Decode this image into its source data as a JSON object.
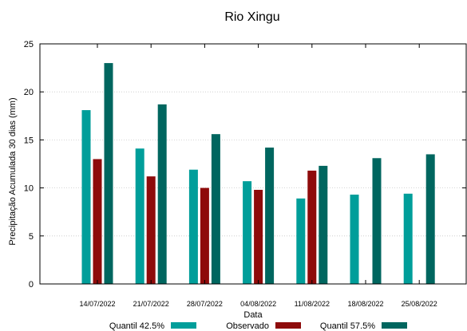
{
  "chart_data": {
    "type": "bar",
    "title": "Rio Xingu",
    "xlabel": "Data",
    "ylabel": "Precipitação Acumulada 30 dias (mm)",
    "ylim": [
      0,
      25
    ],
    "yticks": [
      0,
      5,
      10,
      15,
      20,
      25
    ],
    "grid": true,
    "legend_position": "bottom",
    "categories": [
      "14/07/2022",
      "21/07/2022",
      "28/07/2022",
      "04/08/2022",
      "11/08/2022",
      "18/08/2022",
      "25/08/2022"
    ],
    "series": [
      {
        "name": "Quantil 42.5%",
        "color": "#009E9A",
        "values": [
          18.1,
          14.1,
          11.9,
          10.7,
          8.9,
          9.3,
          9.4
        ]
      },
      {
        "name": "Observado",
        "color": "#8E0B0B",
        "values": [
          13.0,
          11.2,
          10.0,
          9.8,
          11.8,
          null,
          null
        ]
      },
      {
        "name": "Quantil 57.5%",
        "color": "#00665F",
        "values": [
          23.0,
          18.7,
          15.6,
          14.2,
          12.3,
          13.1,
          13.5
        ]
      }
    ]
  }
}
